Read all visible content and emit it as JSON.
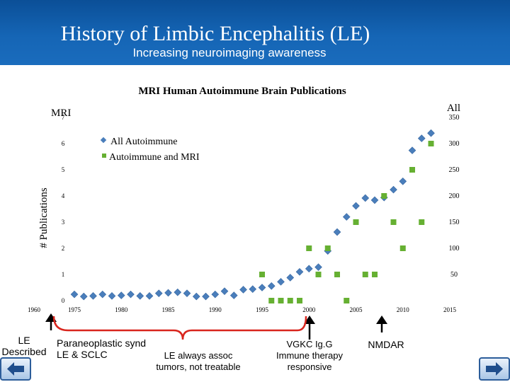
{
  "slide": {
    "title": "History of Limbic Encephalitis (LE)",
    "subtitle": "Increasing neuroimaging awareness",
    "header_color": "#1565b5"
  },
  "chart_data": {
    "type": "scatter",
    "title": "MRI Human Autoimmune Brain Publications",
    "ylabel": "# Publications",
    "y_left_axis_title": "MRI",
    "y_right_axis_title": "All",
    "y_left_ticks": [
      "0",
      "1",
      "2",
      "3",
      "4",
      "5",
      "6",
      "7"
    ],
    "y_right_ticks": [
      "50",
      "100",
      "150",
      "200",
      "250",
      "300",
      "350"
    ],
    "x_ticks": [
      "1960",
      "1975",
      "1980",
      "1985",
      "1990",
      "1995",
      "2000",
      "2005",
      "2010",
      "2015"
    ],
    "ylim_left": [
      0,
      7
    ],
    "ylim_right": [
      0,
      350
    ],
    "legend_position": "top-left",
    "series": [
      {
        "name": "All Autoimmune",
        "axis": "right",
        "marker": "diamond",
        "color": "#4a7ebb",
        "x": [
          1975,
          1976,
          1977,
          1978,
          1979,
          1980,
          1981,
          1982,
          1983,
          1984,
          1985,
          1986,
          1987,
          1988,
          1989,
          1990,
          1991,
          1992,
          1993,
          1994,
          1995,
          1996,
          1997,
          1998,
          1999,
          2000,
          2001,
          2002,
          2003,
          2004,
          2005,
          2006,
          2007,
          2008,
          2009,
          2010,
          2011,
          2012,
          2013
        ],
        "values": [
          12,
          8,
          9,
          12,
          9,
          10,
          12,
          9,
          9,
          14,
          15,
          16,
          14,
          8,
          8,
          12,
          18,
          10,
          21,
          22,
          25,
          28,
          36,
          44,
          55,
          61,
          64,
          95,
          131,
          160,
          181,
          196,
          192,
          197,
          212,
          228,
          287,
          310,
          320
        ]
      },
      {
        "name": "Autoimmune and MRI",
        "axis": "left",
        "marker": "square",
        "color": "#66b032",
        "x": [
          1995,
          1996,
          1997,
          1998,
          1999,
          2000,
          2001,
          2002,
          2003,
          2004,
          2005,
          2006,
          2007,
          2008,
          2009,
          2010,
          2011,
          2012,
          2013
        ],
        "values": [
          1,
          0,
          0,
          0,
          0,
          2,
          1,
          2,
          1,
          0,
          3,
          1,
          1,
          4,
          3,
          2,
          5,
          3,
          6
        ]
      }
    ]
  },
  "timeline": {
    "le_described": "LE\nDescribed",
    "paraneoplastic": "Paraneoplastic synd\nLE & SCLC",
    "not_treatable": "LE always assoc\ntumors, not treatable",
    "vgkc": "VGKC Ig.G\nImmune therapy\nresponsive",
    "nmdar": "NMDAR"
  },
  "nav": {
    "prev_icon": "arrow-left-icon",
    "next_icon": "arrow-right-icon"
  }
}
